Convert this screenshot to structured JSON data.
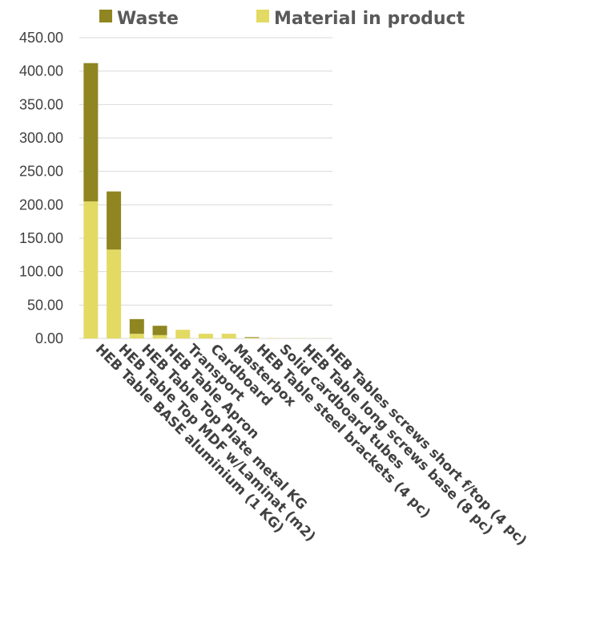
{
  "chart_data": {
    "type": "bar",
    "stacked": true,
    "title": "",
    "xlabel": "",
    "ylabel": "",
    "ylim": [
      0,
      450
    ],
    "yticks": [
      "0.00",
      "50.00",
      "100.00",
      "150.00",
      "200.00",
      "250.00",
      "300.00",
      "350.00",
      "400.00",
      "450.00"
    ],
    "grid": true,
    "legend_position": "top",
    "categories": [
      "HEB Table BASE aluminium (1 KG)",
      "HEB Table Top MDF w/Laminat (m2)",
      "HEB Table Top Plate metal KG",
      "HEB Table Apron",
      "Transport",
      "Cardboard",
      "Masterbox",
      "HEB Table steel brackets (4 pc)",
      "Solid cardboard tubes",
      "HEB Table long screws base (8 pc)",
      "HEB Tables screws short f/top (4 pc)"
    ],
    "series": [
      {
        "name": "Material in product",
        "color": "#e3da63",
        "values": [
          205,
          133,
          7,
          5,
          13,
          7,
          7,
          1,
          0.5,
          0.3,
          0.2
        ]
      },
      {
        "name": "Waste",
        "color": "#8f8622",
        "values": [
          207,
          87,
          22,
          14,
          0,
          0,
          0,
          1,
          0,
          0,
          0
        ]
      }
    ]
  }
}
